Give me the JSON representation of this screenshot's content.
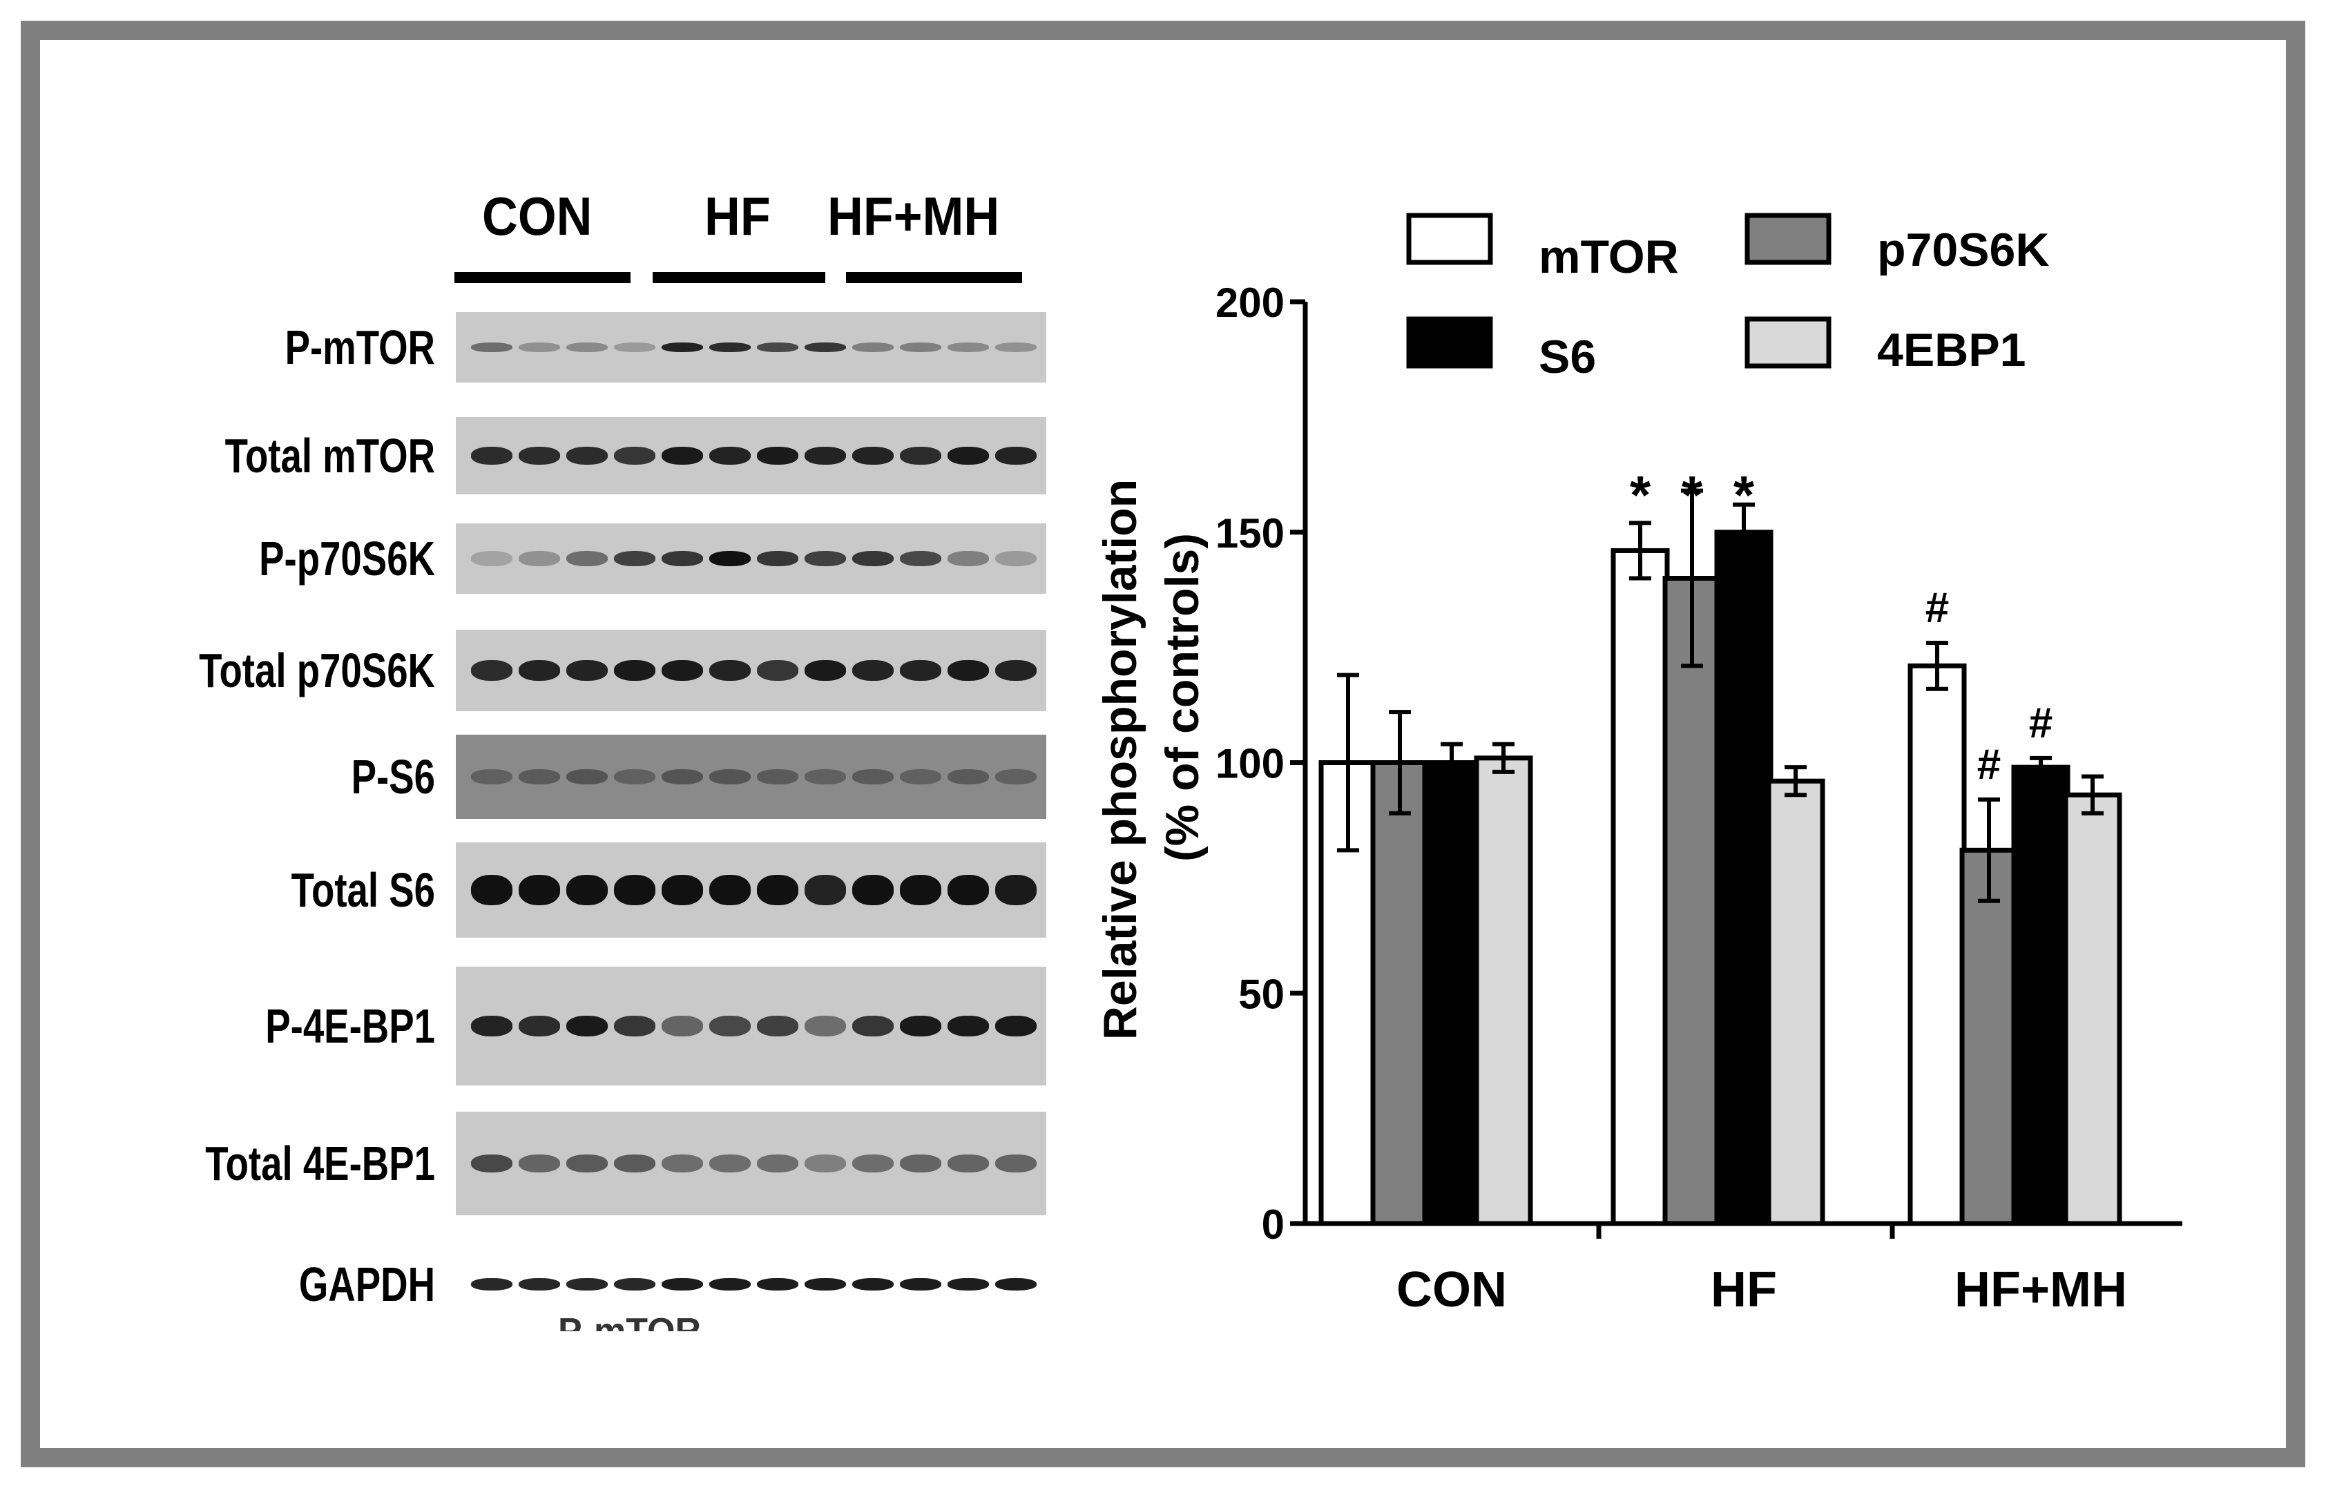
{
  "blot": {
    "groups": [
      "CON",
      "HF",
      "HF+MH"
    ],
    "rows": [
      "P-mTOR",
      "Total mTOR",
      "P-p70S6K",
      "Total p70S6K",
      "P-S6",
      "Total S6",
      "P-4E-BP1",
      "Total 4E-BP1",
      "GAPDH"
    ],
    "cut_text": "P-mTOR"
  },
  "chart_data": {
    "type": "bar",
    "categories": [
      "CON",
      "HF",
      "HF+MH"
    ],
    "series": [
      {
        "name": "mTOR",
        "color": "#ffffff",
        "values": [
          100,
          146,
          121
        ],
        "errors": [
          19,
          6,
          5
        ]
      },
      {
        "name": "p70S6K",
        "color": "#808080",
        "values": [
          100,
          140,
          81
        ],
        "errors": [
          11,
          19,
          11
        ]
      },
      {
        "name": "S6",
        "color": "#000000",
        "values": [
          100,
          150,
          99
        ],
        "errors": [
          4,
          6,
          2
        ]
      },
      {
        "name": "4EBP1",
        "color": "#d9d9d9",
        "values": [
          101,
          96,
          93
        ],
        "errors": [
          3,
          3,
          4
        ]
      }
    ],
    "annotations": [
      [
        "",
        "*",
        "#"
      ],
      [
        "",
        "*",
        "#"
      ],
      [
        "",
        "*",
        "#"
      ],
      [
        "",
        "",
        ""
      ]
    ],
    "ylabel_line1": "Relative phosphorylation",
    "ylabel_line2": "(% of controls)",
    "ylim": [
      0,
      200
    ],
    "yticks": [
      "0",
      "50",
      "100",
      "150",
      "200"
    ],
    "legend_position": "top",
    "grid": false
  }
}
